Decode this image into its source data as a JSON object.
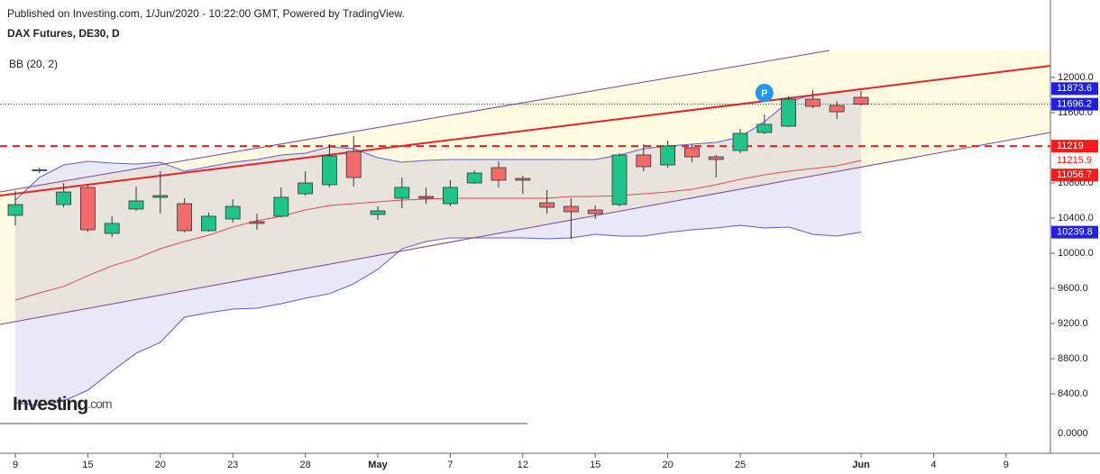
{
  "header": {
    "published": "Published on Investing.com, 1/Jun/2020 - 10:22:00 GMT, Powered by TradingView.",
    "symbol": "DAX Futures, DE30, D",
    "brand": "Investing",
    "brand_suffix": ".com"
  },
  "chart_data": {
    "type": "candlestick",
    "indicator_label": "BB (20, 2)",
    "categories": [
      "9",
      null,
      null,
      "15",
      null,
      null,
      "20",
      null,
      null,
      "23",
      null,
      null,
      "28",
      null,
      null,
      "May",
      null,
      null,
      "7",
      null,
      null,
      "12",
      null,
      null,
      "15",
      null,
      null,
      "20",
      null,
      null,
      "25",
      null,
      null,
      null,
      null,
      "Jun",
      null,
      null,
      "4",
      null,
      null,
      "9"
    ],
    "open": [
      10431,
      10944,
      10554,
      10749,
      10226,
      10503,
      10636,
      10564,
      10257,
      10390,
      10359,
      10421,
      10677,
      10780,
      11159,
      10441,
      10626,
      10646,
      10564,
      10800,
      10974,
      10851,
      10574,
      10533,
      10492,
      10554,
      11118,
      11005,
      11200,
      11097,
      11169,
      11374,
      11446,
      11754,
      11682,
      11774,
      null,
      null,
      null,
      null,
      null,
      null
    ],
    "high": [
      10708,
      10974,
      10800,
      10780,
      10421,
      10759,
      10933,
      10626,
      10462,
      10615,
      10451,
      10749,
      10933,
      11241,
      11333,
      10533,
      10862,
      10749,
      10831,
      10944,
      11046,
      10882,
      10718,
      10626,
      10544,
      11139,
      11241,
      11282,
      11241,
      11118,
      11415,
      11579,
      11785,
      11856,
      11733,
      11846,
      null,
      null,
      null,
      null,
      null,
      null
    ],
    "low": [
      10318,
      10913,
      10523,
      10246,
      10185,
      10482,
      10451,
      10236,
      10246,
      10349,
      10267,
      10410,
      10656,
      10749,
      10759,
      10380,
      10513,
      10564,
      10533,
      10790,
      10749,
      10677,
      10451,
      10164,
      10390,
      10533,
      10933,
      10974,
      11036,
      10862,
      11139,
      11354,
      11436,
      11651,
      11528,
      11682,
      null,
      null,
      null,
      null,
      null,
      null
    ],
    "close": [
      10554,
      10950,
      10697,
      10267,
      10339,
      10595,
      10656,
      10257,
      10421,
      10533,
      10339,
      10636,
      10800,
      11108,
      10862,
      10482,
      10749,
      10626,
      10749,
      10913,
      10831,
      10831,
      10523,
      10472,
      10451,
      11118,
      10985,
      11221,
      11097,
      11067,
      11364,
      11467,
      11754,
      11672,
      11610,
      11696.2,
      null,
      null,
      null,
      null,
      null,
      null
    ],
    "up_color": "#1ec48a",
    "down_color": "#f26a6a",
    "bollinger": {
      "color": "#5b5be0",
      "middle_color": "#e8464c",
      "upper": [
        10605,
        10862,
        11005,
        11046,
        11026,
        11016,
        11036,
        10933,
        10985,
        11036,
        11067,
        11118,
        11139,
        11210,
        11190,
        11087,
        11036,
        11056,
        11067,
        11067,
        11067,
        11067,
        11067,
        11067,
        11067,
        11118,
        11190,
        11221,
        11241,
        11262,
        11323,
        11497,
        11723,
        11805,
        11826,
        11873.6,
        null,
        null,
        null,
        null,
        null,
        null
      ],
      "middle": [
        9467,
        9549,
        9621,
        9744,
        9857,
        9939,
        10051,
        10133,
        10205,
        10298,
        10369,
        10421,
        10492,
        10544,
        10564,
        10585,
        10605,
        10615,
        10626,
        10626,
        10626,
        10626,
        10626,
        10646,
        10646,
        10656,
        10677,
        10697,
        10728,
        10780,
        10841,
        10892,
        10933,
        10964,
        10995,
        11056.7,
        null,
        null,
        null,
        null,
        null,
        null
      ],
      "lower": [
        8298,
        8267,
        8318,
        8441,
        8657,
        8862,
        8985,
        9272,
        9323,
        9364,
        9375,
        9426,
        9487,
        9539,
        9652,
        9816,
        10051,
        10133,
        10175,
        10175,
        10175,
        10175,
        10164,
        10175,
        10216,
        10195,
        10195,
        10236,
        10267,
        10287,
        10318,
        10287,
        10298,
        10216,
        10195,
        10239.8,
        null,
        null,
        null,
        null,
        null,
        null
      ]
    },
    "ylim": [
      7754,
      12882
    ],
    "yticks": [
      {
        "value": 12000,
        "label": "12000.0"
      },
      {
        "value": 11600,
        "label": "11600.0"
      },
      {
        "value": 10800,
        "label": "10800.0"
      },
      {
        "value": 10400,
        "label": "10400.0"
      },
      {
        "value": 10000,
        "label": "10000.0"
      },
      {
        "value": 9600,
        "label": "9600.0"
      },
      {
        "value": 9200,
        "label": "9200.0"
      },
      {
        "value": 8800,
        "label": "8800.0"
      },
      {
        "value": 8400,
        "label": "8400.0"
      }
    ],
    "lower_pane_tick": "0.0000",
    "price_labels": [
      {
        "value": 11873.6,
        "color": "#1f1fe6"
      },
      {
        "value": 11696.2,
        "color": "#1f1fe6"
      },
      {
        "value": 11219.0,
        "color": "#ff1a1a"
      },
      {
        "value": 11215.9,
        "color": "#ff1a1a"
      },
      {
        "value": 11056.7,
        "color": "#ff1a1a"
      },
      {
        "value": 10239.8,
        "color": "#1f1fe6"
      }
    ],
    "marker": "P"
  }
}
